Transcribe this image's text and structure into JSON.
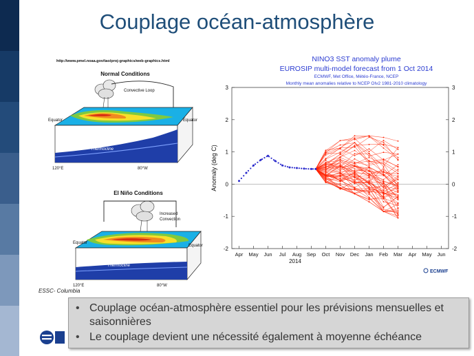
{
  "slide": {
    "title": "Couplage océan-atmosphère",
    "source_url": "http://www.pmel.noaa.gov/tao/proj-graphics/web-graphics.html",
    "caption": "ESSC- Columbia",
    "bullets": [
      "Couplage océan-atmosphère essentiel pour les prévisions mensuelles et saisonnières",
      "Le couplage devient une nécessité également à moyenne échéance"
    ]
  },
  "diagrams": {
    "normal": {
      "title": "Normal Conditions",
      "loop_label": "Convective Loop",
      "equator_left": "Equator",
      "equator_right": "Equator",
      "thermocline": "Thermocline",
      "lon_left": "120°E",
      "lon_right": "80°W"
    },
    "elnino": {
      "title": "El Niño Conditions",
      "loop_label_1": "Increased",
      "loop_label_2": "Convection",
      "equator_left": "Equator",
      "equator_right": "Equator",
      "thermocline": "Thermocline",
      "lon_left": "120°E",
      "lon_right": "80°W"
    }
  },
  "colors": {
    "title": "#1f4e79",
    "chart_title": "#2a3bd1",
    "observed": "#2b2bcc",
    "forecast": "#ff2200",
    "band": [
      "#0d2a50",
      "#163a66",
      "#234b7a",
      "#3a5e8c",
      "#587aa3",
      "#7d98bb",
      "#a4b7d2"
    ]
  },
  "chart_data": {
    "type": "line",
    "title_lines": [
      "NINO3 SST anomaly plume",
      "EUROSIP multi-model forecast from 1 Oct 2014"
    ],
    "subtitle_lines": [
      "ECMWF, Met Office, Météo-France, NCEP",
      "Monthly mean anomalies relative to NCEP OIv2 1981-2010 climatology"
    ],
    "ylabel": "Anomaly (deg C)",
    "ylim": [
      -2,
      3
    ],
    "yticks": [
      -2,
      -1,
      0,
      1,
      2,
      3
    ],
    "xticks": [
      "Apr",
      "May",
      "Jun",
      "Jul",
      "Aug",
      "Sep",
      "Oct",
      "Nov",
      "Dec",
      "Jan",
      "Feb",
      "Mar",
      "Apr",
      "May",
      "Jun"
    ],
    "year_label": "2014",
    "series": [
      {
        "x": [
          0,
          0.5,
          1,
          1.5,
          2,
          2.5,
          3,
          3.5,
          4,
          4.5,
          5,
          5.3
        ],
        "values": [
          0.1,
          0.35,
          0.58,
          0.75,
          0.88,
          0.72,
          0.58,
          0.52,
          0.5,
          0.48,
          0.47,
          0.47
        ]
      },
      {
        "x": [
          5.3,
          6,
          7,
          8,
          9,
          10,
          11
        ],
        "values": [
          0.47,
          0.55,
          0.65,
          0.7,
          0.65,
          0.6,
          0.55
        ]
      }
    ],
    "plume": {
      "start_x": 5.3,
      "start_y": 0.47,
      "months_x": [
        6,
        7,
        8,
        9,
        10,
        11
      ],
      "spread_top": [
        1.05,
        1.35,
        1.5,
        1.5,
        1.45,
        1.4
      ],
      "spread_bottom": [
        0.05,
        -0.15,
        -0.3,
        -0.55,
        -0.85,
        -1.05
      ],
      "members": 60
    },
    "grid": false,
    "legend": "none",
    "logo_text": "ECMWF"
  }
}
